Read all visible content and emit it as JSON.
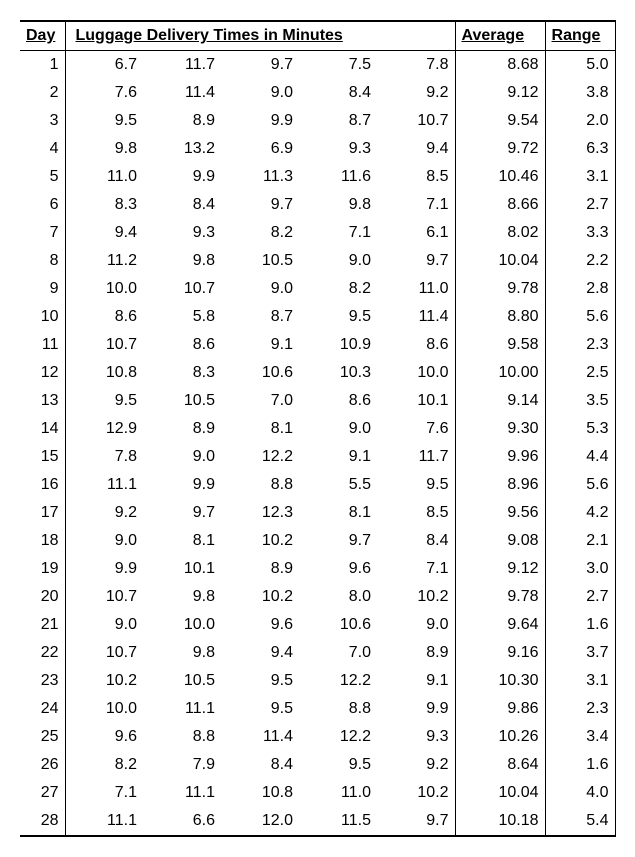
{
  "table": {
    "headers": {
      "day": "Day",
      "times": "Luggage Delivery Times in Minutes",
      "average": "Average",
      "range": "Range"
    },
    "font_size_pt": 12,
    "background_color": "#ffffff",
    "text_color": "#000000",
    "border_color": "#000000",
    "columns": [
      "Day",
      "t1",
      "t2",
      "t3",
      "t4",
      "t5",
      "Average",
      "Range"
    ],
    "col_align": [
      "right",
      "right",
      "right",
      "right",
      "right",
      "right",
      "right",
      "right"
    ],
    "rows": [
      {
        "day": 1,
        "t": [
          6.7,
          11.7,
          9.7,
          7.5,
          7.8
        ],
        "avg": 8.68,
        "rng": 5.0
      },
      {
        "day": 2,
        "t": [
          7.6,
          11.4,
          9.0,
          8.4,
          9.2
        ],
        "avg": 9.12,
        "rng": 3.8
      },
      {
        "day": 3,
        "t": [
          9.5,
          8.9,
          9.9,
          8.7,
          10.7
        ],
        "avg": 9.54,
        "rng": 2.0
      },
      {
        "day": 4,
        "t": [
          9.8,
          13.2,
          6.9,
          9.3,
          9.4
        ],
        "avg": 9.72,
        "rng": 6.3
      },
      {
        "day": 5,
        "t": [
          11.0,
          9.9,
          11.3,
          11.6,
          8.5
        ],
        "avg": 10.46,
        "rng": 3.1
      },
      {
        "day": 6,
        "t": [
          8.3,
          8.4,
          9.7,
          9.8,
          7.1
        ],
        "avg": 8.66,
        "rng": 2.7
      },
      {
        "day": 7,
        "t": [
          9.4,
          9.3,
          8.2,
          7.1,
          6.1
        ],
        "avg": 8.02,
        "rng": 3.3
      },
      {
        "day": 8,
        "t": [
          11.2,
          9.8,
          10.5,
          9.0,
          9.7
        ],
        "avg": 10.04,
        "rng": 2.2
      },
      {
        "day": 9,
        "t": [
          10.0,
          10.7,
          9.0,
          8.2,
          11.0
        ],
        "avg": 9.78,
        "rng": 2.8
      },
      {
        "day": 10,
        "t": [
          8.6,
          5.8,
          8.7,
          9.5,
          11.4
        ],
        "avg": 8.8,
        "rng": 5.6
      },
      {
        "day": 11,
        "t": [
          10.7,
          8.6,
          9.1,
          10.9,
          8.6
        ],
        "avg": 9.58,
        "rng": 2.3
      },
      {
        "day": 12,
        "t": [
          10.8,
          8.3,
          10.6,
          10.3,
          10.0
        ],
        "avg": 10.0,
        "rng": 2.5
      },
      {
        "day": 13,
        "t": [
          9.5,
          10.5,
          7.0,
          8.6,
          10.1
        ],
        "avg": 9.14,
        "rng": 3.5
      },
      {
        "day": 14,
        "t": [
          12.9,
          8.9,
          8.1,
          9.0,
          7.6
        ],
        "avg": 9.3,
        "rng": 5.3
      },
      {
        "day": 15,
        "t": [
          7.8,
          9.0,
          12.2,
          9.1,
          11.7
        ],
        "avg": 9.96,
        "rng": 4.4
      },
      {
        "day": 16,
        "t": [
          11.1,
          9.9,
          8.8,
          5.5,
          9.5
        ],
        "avg": 8.96,
        "rng": 5.6
      },
      {
        "day": 17,
        "t": [
          9.2,
          9.7,
          12.3,
          8.1,
          8.5
        ],
        "avg": 9.56,
        "rng": 4.2
      },
      {
        "day": 18,
        "t": [
          9.0,
          8.1,
          10.2,
          9.7,
          8.4
        ],
        "avg": 9.08,
        "rng": 2.1
      },
      {
        "day": 19,
        "t": [
          9.9,
          10.1,
          8.9,
          9.6,
          7.1
        ],
        "avg": 9.12,
        "rng": 3.0
      },
      {
        "day": 20,
        "t": [
          10.7,
          9.8,
          10.2,
          8.0,
          10.2
        ],
        "avg": 9.78,
        "rng": 2.7
      },
      {
        "day": 21,
        "t": [
          9.0,
          10.0,
          9.6,
          10.6,
          9.0
        ],
        "avg": 9.64,
        "rng": 1.6
      },
      {
        "day": 22,
        "t": [
          10.7,
          9.8,
          9.4,
          7.0,
          8.9
        ],
        "avg": 9.16,
        "rng": 3.7
      },
      {
        "day": 23,
        "t": [
          10.2,
          10.5,
          9.5,
          12.2,
          9.1
        ],
        "avg": 10.3,
        "rng": 3.1
      },
      {
        "day": 24,
        "t": [
          10.0,
          11.1,
          9.5,
          8.8,
          9.9
        ],
        "avg": 9.86,
        "rng": 2.3
      },
      {
        "day": 25,
        "t": [
          9.6,
          8.8,
          11.4,
          12.2,
          9.3
        ],
        "avg": 10.26,
        "rng": 3.4
      },
      {
        "day": 26,
        "t": [
          8.2,
          7.9,
          8.4,
          9.5,
          9.2
        ],
        "avg": 8.64,
        "rng": 1.6
      },
      {
        "day": 27,
        "t": [
          7.1,
          11.1,
          10.8,
          11.0,
          10.2
        ],
        "avg": 10.04,
        "rng": 4.0
      },
      {
        "day": 28,
        "t": [
          11.1,
          6.6,
          12.0,
          11.5,
          9.7
        ],
        "avg": 10.18,
        "rng": 5.4
      }
    ]
  }
}
